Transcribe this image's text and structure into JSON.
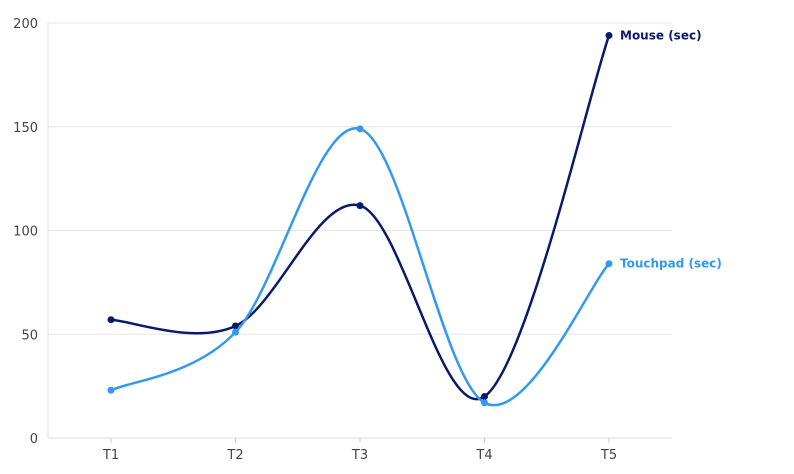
{
  "chart_data": {
    "type": "line",
    "categories": [
      "T1",
      "T2",
      "T3",
      "T4",
      "T5"
    ],
    "series": [
      {
        "name": "Mouse (sec)",
        "values": [
          57,
          54,
          112,
          20,
          194
        ],
        "color": "#0a1a6b"
      },
      {
        "name": "Touchpad (sec)",
        "values": [
          23,
          51,
          149,
          17,
          84
        ],
        "color": "#3399ee"
      }
    ],
    "ylim": [
      0,
      200
    ],
    "yticks": [
      0,
      50,
      100,
      150,
      200
    ],
    "grid": true,
    "legend": "end-of-line labels",
    "title": "",
    "xlabel": "",
    "ylabel": ""
  }
}
